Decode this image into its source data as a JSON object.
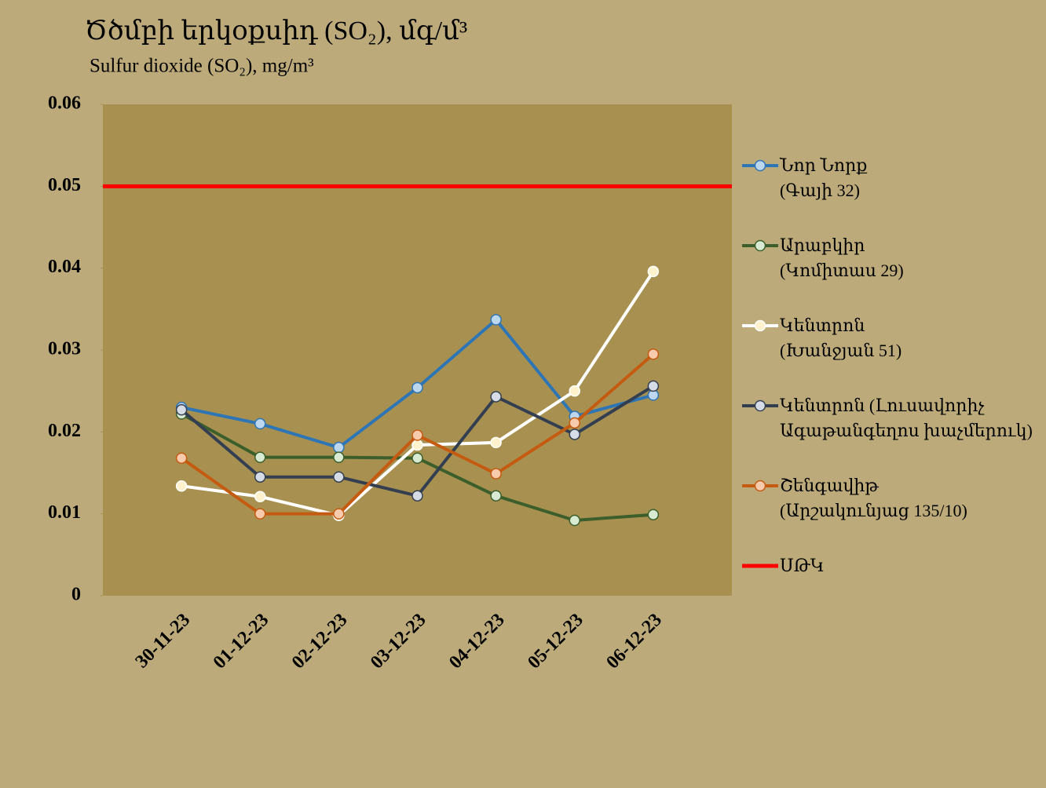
{
  "chart_data": {
    "type": "line",
    "title": "Ծծմբի երկօքսիդ (SO₂), մգ/մ³",
    "subtitle": "Sulfur dioxide (SO₂), mg/m³",
    "categories": [
      "30-11-23",
      "01-12-23",
      "02-12-23",
      "03-12-23",
      "04-12-23",
      "05-12-23",
      "06-12-23"
    ],
    "series": [
      {
        "name": "Նոր Նորք\n(Գայի 32)",
        "color": "#2e75b6",
        "marker_color": "#bdd7ee",
        "values": [
          0.023,
          0.021,
          0.0181,
          0.0254,
          0.0337,
          0.0219,
          0.0245
        ]
      },
      {
        "name": "Արաբկիր\n(Կոմիտաս 29)",
        "color": "#3b5e2b",
        "marker_color": "#d9ead3",
        "values": [
          0.0222,
          0.0169,
          0.0169,
          0.0168,
          0.0122,
          0.0092,
          0.0099
        ]
      },
      {
        "name": "Կենտրոն\n(Խանջյան 51)",
        "color": "#ffffff",
        "marker_color": "#fff2cc",
        "values": [
          0.0134,
          0.0121,
          0.0098,
          0.0184,
          0.0187,
          0.025,
          0.0396
        ]
      },
      {
        "name": "Կենտրոն (Լուսավորիչ\nԱգաթանգեղոս խաչմերուկ)",
        "color": "#333f50",
        "marker_color": "#d6dce5",
        "values": [
          0.0227,
          0.0145,
          0.0145,
          0.0122,
          0.0243,
          0.0197,
          0.0256
        ]
      },
      {
        "name": "Շենգավիթ\n(Արշակունյաց 135/10)",
        "color": "#c55a11",
        "marker_color": "#f8cbad",
        "values": [
          0.0168,
          0.01,
          0.01,
          0.0196,
          0.0149,
          0.0211,
          0.0295
        ]
      }
    ],
    "reference_lines": [
      {
        "name": "ՍԹԿ",
        "value": 0.05,
        "color": "#ff0000"
      }
    ],
    "ylim": [
      0,
      0.06
    ],
    "yticks": [
      0,
      0.01,
      0.02,
      0.03,
      0.04,
      0.05,
      0.06
    ],
    "plot_background": "#a89150"
  }
}
